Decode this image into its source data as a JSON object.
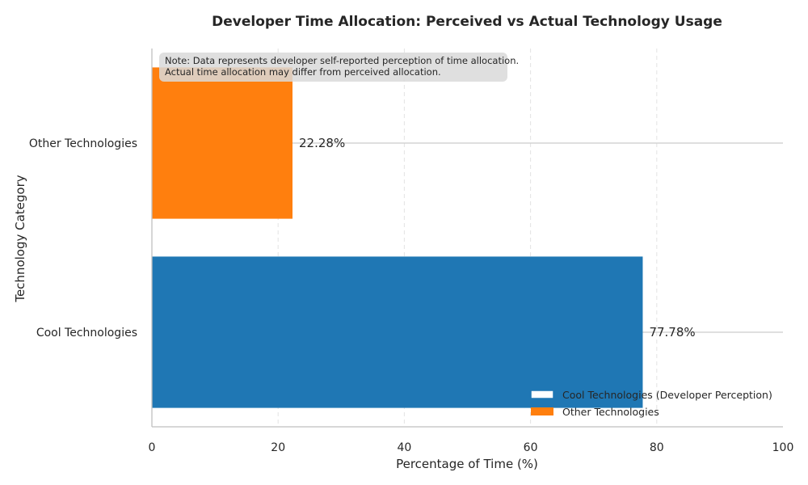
{
  "chart_data": {
    "type": "bar",
    "orientation": "horizontal",
    "title": "Developer Time Allocation: Perceived vs Actual Technology Usage",
    "xlabel": "Percentage of Time (%)",
    "ylabel": "Technology Category",
    "xlim": [
      0,
      100
    ],
    "x_ticks": [
      0,
      20,
      40,
      60,
      80,
      100
    ],
    "categories": [
      "Other Technologies",
      "Cool Technologies"
    ],
    "values": [
      22.28,
      77.78
    ],
    "value_labels": [
      "22.28%",
      "77.78%"
    ],
    "colors": [
      "#ff7f0e",
      "#1f77b4"
    ],
    "grid": "x-dashed",
    "note_lines": [
      "Note: Data represents developer self-reported perception of time allocation.",
      "Actual time allocation may differ from perceived allocation."
    ],
    "legend_placement": "bottom-right",
    "legend": [
      {
        "label": "Cool Technologies (Developer Perception)",
        "color": "#1f77b4",
        "style": "outline"
      },
      {
        "label": "Other Technologies",
        "color": "#ff7f0e",
        "style": "filled"
      }
    ]
  }
}
